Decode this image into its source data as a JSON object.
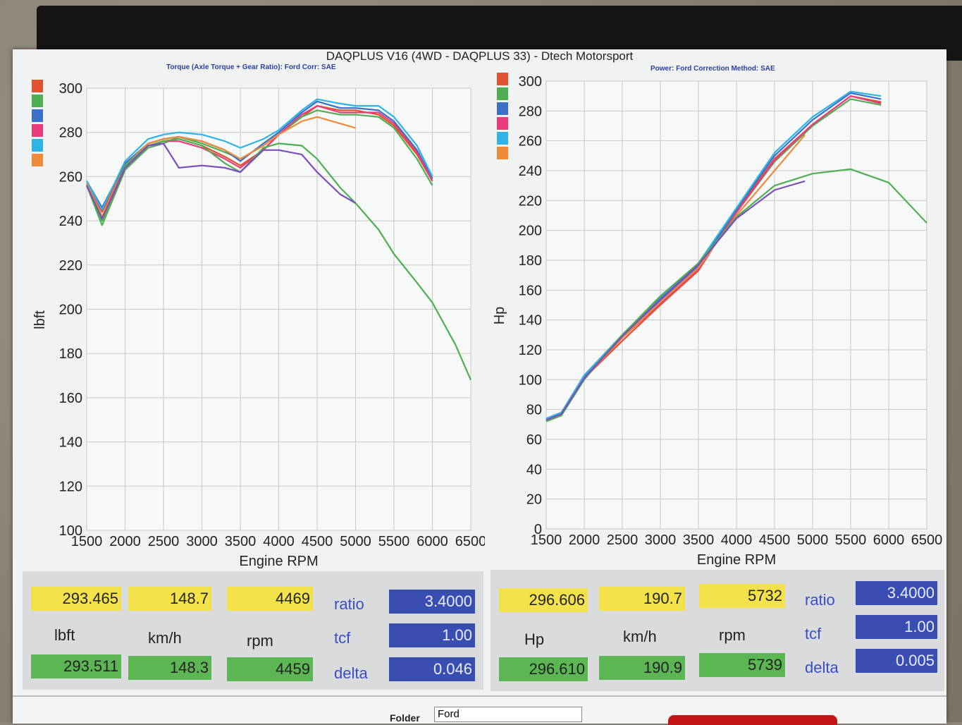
{
  "header": {
    "title": "DAQPLUS V16 (4WD - DAQPLUS 33) - Dtech Motorsport",
    "left_sub": "Torque (Axle Torque + Gear Ratio): Ford    Corr: SAE",
    "right_sub": "Power: Ford    Correction Method: SAE"
  },
  "colors": {
    "red": "#e2522e",
    "green": "#4fae52",
    "blue": "#3c6fc8",
    "pink": "#e83c7c",
    "cyan": "#2fb3e6",
    "orange": "#ef8a3a",
    "purple": "#7a4fbf"
  },
  "chart_data": [
    {
      "type": "line",
      "xlabel": "Engine RPM",
      "ylabel": "lbft",
      "xlim": [
        1500,
        6500
      ],
      "ylim": [
        100,
        300
      ],
      "xticks": [
        "1500",
        "2000",
        "2500",
        "3000",
        "3500",
        "4000",
        "4500",
        "5000",
        "5500",
        "6000",
        "6500"
      ],
      "yticks": [
        "100",
        "120",
        "140",
        "160",
        "180",
        "200",
        "220",
        "240",
        "260",
        "280",
        "300"
      ],
      "series": [
        {
          "color": "#e2522e",
          "x": [
            1500,
            1700,
            2000,
            2300,
            2500,
            2700,
            3000,
            3300,
            3500,
            3800,
            4000,
            4300,
            4500,
            4800,
            5000,
            5300,
            5500,
            5800,
            6000
          ],
          "y": [
            257,
            244,
            265,
            274,
            276,
            277,
            274,
            269,
            265,
            272,
            279,
            287,
            292,
            290,
            290,
            288,
            283,
            270,
            258
          ]
        },
        {
          "color": "#4fae52",
          "x": [
            1500,
            1700,
            2000,
            2300,
            2500,
            2700,
            3000,
            3300,
            3500,
            3800,
            4000,
            4300,
            4500,
            4800,
            5000,
            5300,
            5500,
            5800,
            6000
          ],
          "y": [
            256,
            238,
            263,
            273,
            275,
            278,
            275,
            271,
            268,
            274,
            279,
            287,
            290,
            288,
            288,
            287,
            282,
            268,
            256
          ]
        },
        {
          "color": "#3c6fc8",
          "x": [
            1500,
            1700,
            2000,
            2300,
            2500,
            2700,
            3000,
            3300,
            3500,
            3800,
            4000,
            4300,
            4500,
            4800,
            5000,
            5300,
            5500,
            5800,
            6000
          ],
          "y": [
            258,
            246,
            266,
            275,
            277,
            278,
            276,
            272,
            267,
            275,
            280,
            289,
            294,
            291,
            291,
            290,
            285,
            272,
            259
          ]
        },
        {
          "color": "#e83c7c",
          "x": [
            1500,
            1700,
            2000,
            2300,
            2500,
            2700,
            3000,
            3300,
            3500,
            3800,
            4000,
            4300,
            4500,
            4800,
            5000,
            5300,
            5500,
            5800,
            6000
          ],
          "y": [
            257,
            240,
            264,
            274,
            276,
            276,
            273,
            268,
            264,
            272,
            279,
            288,
            292,
            289,
            289,
            289,
            284,
            271,
            258
          ]
        },
        {
          "color": "#2fb3e6",
          "x": [
            1500,
            1700,
            2000,
            2300,
            2500,
            2700,
            3000,
            3300,
            3500,
            3800,
            4000,
            4300,
            4500,
            4800,
            5000,
            5300,
            5500,
            5800,
            6000
          ],
          "y": [
            258,
            245,
            267,
            277,
            279,
            280,
            279,
            276,
            273,
            277,
            281,
            290,
            295,
            293,
            292,
            292,
            287,
            274,
            260
          ]
        },
        {
          "color": "#ef8a3a",
          "x": [
            1500,
            1700,
            2000,
            2300,
            2500,
            2700,
            3000,
            3300,
            3500,
            3800,
            4000,
            4300,
            4500,
            4800,
            5000
          ],
          "y": [
            257,
            242,
            265,
            275,
            277,
            278,
            276,
            272,
            268,
            274,
            279,
            285,
            287,
            284,
            282
          ]
        },
        {
          "color": "#4fae52",
          "x": [
            1500,
            1700,
            2000,
            2300,
            2500,
            2700,
            3000,
            3300,
            3500,
            3800,
            4000,
            4300,
            4500,
            4800,
            5000,
            5300,
            5500,
            5800,
            6000,
            6300,
            6500
          ],
          "y": [
            256,
            240,
            265,
            274,
            276,
            277,
            274,
            266,
            262,
            273,
            275,
            274,
            268,
            255,
            248,
            236,
            225,
            212,
            203,
            184,
            168
          ]
        },
        {
          "color": "#7a4fbf",
          "x": [
            1500,
            1700,
            2000,
            2300,
            2500,
            2700,
            3000,
            3300,
            3500,
            3800,
            4000,
            4300,
            4500,
            4800,
            5000
          ],
          "y": [
            256,
            241,
            264,
            274,
            275,
            264,
            265,
            264,
            262,
            272,
            272,
            270,
            262,
            252,
            248
          ]
        }
      ]
    },
    {
      "type": "line",
      "xlabel": "Engine RPM",
      "ylabel": "Hp",
      "xlim": [
        1500,
        6500
      ],
      "ylim": [
        0,
        300
      ],
      "xticks": [
        "1500",
        "2000",
        "2500",
        "3000",
        "3500",
        "4000",
        "4500",
        "5000",
        "5500",
        "6000",
        "6500"
      ],
      "yticks": [
        "0",
        "20",
        "40",
        "60",
        "80",
        "100",
        "120",
        "140",
        "160",
        "180",
        "200",
        "220",
        "240",
        "260",
        "280",
        "300"
      ],
      "series": [
        {
          "color": "#e2522e",
          "x": [
            1500,
            1700,
            2000,
            2500,
            3000,
            3500,
            4000,
            4500,
            5000,
            5500,
            5900
          ],
          "y": [
            73,
            77,
            101,
            126,
            150,
            173,
            213,
            248,
            271,
            290,
            286
          ]
        },
        {
          "color": "#4fae52",
          "x": [
            1500,
            1700,
            2000,
            2500,
            3000,
            3500,
            4000,
            4500,
            5000,
            5500,
            5900
          ],
          "y": [
            72,
            76,
            100,
            130,
            155,
            178,
            212,
            246,
            270,
            288,
            284
          ]
        },
        {
          "color": "#3c6fc8",
          "x": [
            1500,
            1700,
            2000,
            2500,
            3000,
            3500,
            4000,
            4500,
            5000,
            5500,
            5900
          ],
          "y": [
            74,
            78,
            102,
            129,
            153,
            176,
            214,
            250,
            274,
            292,
            288
          ]
        },
        {
          "color": "#e83c7c",
          "x": [
            1500,
            1700,
            2000,
            2500,
            3000,
            3500,
            4000,
            4500,
            5000,
            5500,
            5900
          ],
          "y": [
            73,
            77,
            101,
            128,
            151,
            174,
            212,
            247,
            271,
            290,
            285
          ]
        },
        {
          "color": "#2fb3e6",
          "x": [
            1500,
            1700,
            2000,
            2500,
            3000,
            3500,
            4000,
            4500,
            5000,
            5500,
            5900
          ],
          "y": [
            74,
            78,
            103,
            130,
            155,
            178,
            215,
            252,
            276,
            293,
            290
          ]
        },
        {
          "color": "#ef8a3a",
          "x": [
            1500,
            1700,
            2000,
            2500,
            3000,
            3500,
            4000,
            4500,
            4900
          ],
          "y": [
            73,
            77,
            101,
            128,
            152,
            175,
            210,
            240,
            264
          ]
        },
        {
          "color": "#4fae52",
          "x": [
            1500,
            1700,
            2000,
            2500,
            3000,
            3500,
            4000,
            4500,
            5000,
            5500,
            6000,
            6500
          ],
          "y": [
            73,
            77,
            101,
            130,
            156,
            178,
            209,
            230,
            238,
            241,
            232,
            205
          ]
        },
        {
          "color": "#7a4fbf",
          "x": [
            1500,
            1700,
            2000,
            2500,
            3000,
            3500,
            4000,
            4500,
            4900
          ],
          "y": [
            73,
            77,
            101,
            129,
            154,
            177,
            208,
            227,
            233
          ]
        }
      ]
    }
  ],
  "left_stats": {
    "v1": "293.465",
    "v2": "148.7",
    "v3": "4469",
    "u1": "lbft",
    "u2": "km/h",
    "u3": "rpm",
    "w1": "293.511",
    "w2": "148.3",
    "w3": "4459",
    "ratio_label": "ratio",
    "ratio": "3.4000",
    "tcf_label": "tcf",
    "tcf": "1.00",
    "delta_label": "delta",
    "delta": "0.046"
  },
  "right_stats": {
    "v1": "296.606",
    "v2": "190.7",
    "v3": "5732",
    "u1": "Hp",
    "u2": "km/h",
    "u3": "rpm",
    "w1": "296.610",
    "w2": "190.9",
    "w3": "5739",
    "ratio_label": "ratio",
    "ratio": "3.4000",
    "tcf_label": "tcf",
    "tcf": "1.00",
    "delta_label": "delta",
    "delta": "0.005"
  },
  "footer": {
    "folder_label": "Folder",
    "folder_value": "Ford"
  },
  "legend_swatches": [
    "#e2522e",
    "#4fae52",
    "#3c6fc8",
    "#e83c7c",
    "#2fb3e6",
    "#ef8a3a"
  ]
}
